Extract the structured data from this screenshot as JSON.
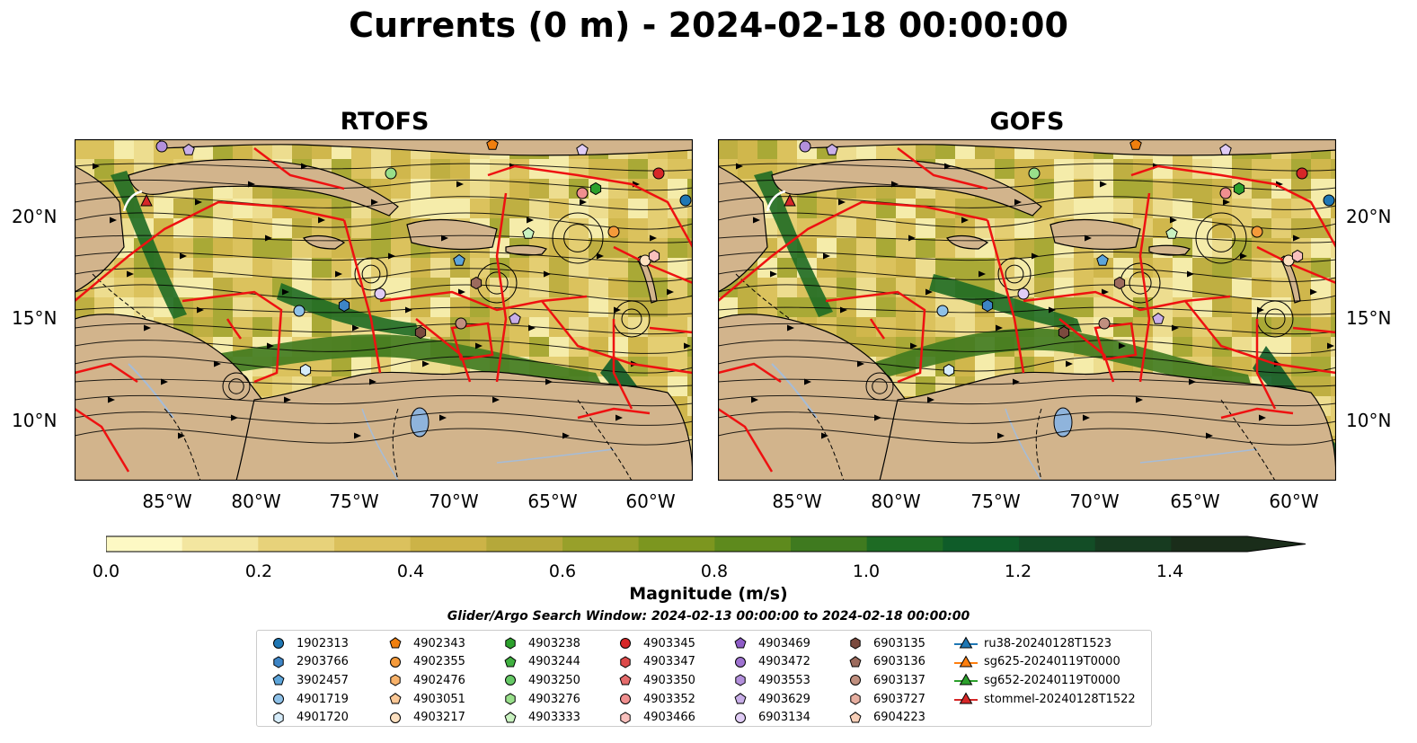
{
  "title": "Currents (0 m) - 2024-02-18 00:00:00",
  "panels": [
    {
      "title": "RTOFS"
    },
    {
      "title": "GOFS"
    }
  ],
  "axes": {
    "lat_ticks": [
      "20°N",
      "15°N",
      "10°N"
    ],
    "lon_ticks": [
      "85°W",
      "80°W",
      "75°W",
      "70°W",
      "65°W",
      "60°W"
    ],
    "lat_range": [
      7.0,
      24.0
    ],
    "lon_range": [
      -89.5,
      -58.0
    ]
  },
  "colorbar": {
    "label": "Magnitude (m/s)",
    "ticks": [
      "0.0",
      "0.2",
      "0.4",
      "0.6",
      "0.8",
      "1.0",
      "1.2",
      "1.4"
    ],
    "range": [
      0.0,
      1.5
    ],
    "extend": "max",
    "colors": [
      "#fdf9c4",
      "#f3e6a0",
      "#e7d27a",
      "#dbc15d",
      "#ccb347",
      "#b5a83a",
      "#98a02a",
      "#7c961f",
      "#5e8a1d",
      "#3f7a1f",
      "#1e6b24",
      "#0f5c29",
      "#134d26",
      "#173b20",
      "#1a2d1a"
    ]
  },
  "search_window": "Glider/Argo Search Window: 2024-02-13 00:00:00 to 2024-02-18 00:00:00",
  "land_color": "#d2b48c",
  "legend": {
    "columns": [
      [
        {
          "label": "1902313",
          "marker": "circle",
          "color": "#1f77b4"
        },
        {
          "label": "2903766",
          "marker": "hexagon",
          "color": "#3d85c6"
        },
        {
          "label": "3902457",
          "marker": "pentagon",
          "color": "#5da5da"
        },
        {
          "label": "4901719",
          "marker": "circle",
          "color": "#8ec1e8"
        },
        {
          "label": "4901720",
          "marker": "hexagon",
          "color": "#d6ecfa"
        }
      ],
      [
        {
          "label": "4902343",
          "marker": "pentagon",
          "color": "#f07f0e"
        },
        {
          "label": "4902355",
          "marker": "circle",
          "color": "#f59a3a"
        },
        {
          "label": "4902476",
          "marker": "hexagon",
          "color": "#f8b26a"
        },
        {
          "label": "4903051",
          "marker": "pentagon",
          "color": "#fbc896"
        },
        {
          "label": "4903217",
          "marker": "circle",
          "color": "#fde0c0"
        }
      ],
      [
        {
          "label": "4903238",
          "marker": "hexagon",
          "color": "#2ca02c"
        },
        {
          "label": "4903244",
          "marker": "pentagon",
          "color": "#40b040"
        },
        {
          "label": "4903250",
          "marker": "circle",
          "color": "#66c966"
        },
        {
          "label": "4903276",
          "marker": "hexagon",
          "color": "#98df8a"
        },
        {
          "label": "4903333",
          "marker": "pentagon",
          "color": "#c9f2c0"
        }
      ],
      [
        {
          "label": "4903345",
          "marker": "circle",
          "color": "#d62728"
        },
        {
          "label": "4903347",
          "marker": "hexagon",
          "color": "#dd4a4a"
        },
        {
          "label": "4903350",
          "marker": "pentagon",
          "color": "#e56b6b"
        },
        {
          "label": "4903352",
          "marker": "circle",
          "color": "#f08f8f"
        },
        {
          "label": "4903466",
          "marker": "hexagon",
          "color": "#f9c0bd"
        }
      ],
      [
        {
          "label": "4903469",
          "marker": "pentagon",
          "color": "#8e5cc7"
        },
        {
          "label": "4903472",
          "marker": "circle",
          "color": "#9f73d1"
        },
        {
          "label": "4903553",
          "marker": "hexagon",
          "color": "#b390dc"
        },
        {
          "label": "4903629",
          "marker": "pentagon",
          "color": "#c8aee8"
        },
        {
          "label": "6903134",
          "marker": "circle",
          "color": "#e0ccf5"
        }
      ],
      [
        {
          "label": "6903135",
          "marker": "hexagon",
          "color": "#7b4a3e"
        },
        {
          "label": "6903136",
          "marker": "pentagon",
          "color": "#9c6b5d"
        },
        {
          "label": "6903137",
          "marker": "circle",
          "color": "#c08f7f"
        },
        {
          "label": "6903727",
          "marker": "hexagon",
          "color": "#e6aea0"
        },
        {
          "label": "6904223",
          "marker": "pentagon",
          "color": "#f8cfb8"
        }
      ],
      [
        {
          "label": "ru38-20240128T1523",
          "marker": "triangle-line",
          "color": "#1f77b4"
        },
        {
          "label": "sg625-20240119T0000",
          "marker": "triangle-line",
          "color": "#ff7f0e"
        },
        {
          "label": "sg652-20240119T0000",
          "marker": "triangle-line",
          "color": "#2ca02c"
        },
        {
          "label": "stommel-20240128T1522",
          "marker": "triangle-line",
          "color": "#d62728"
        }
      ]
    ]
  }
}
